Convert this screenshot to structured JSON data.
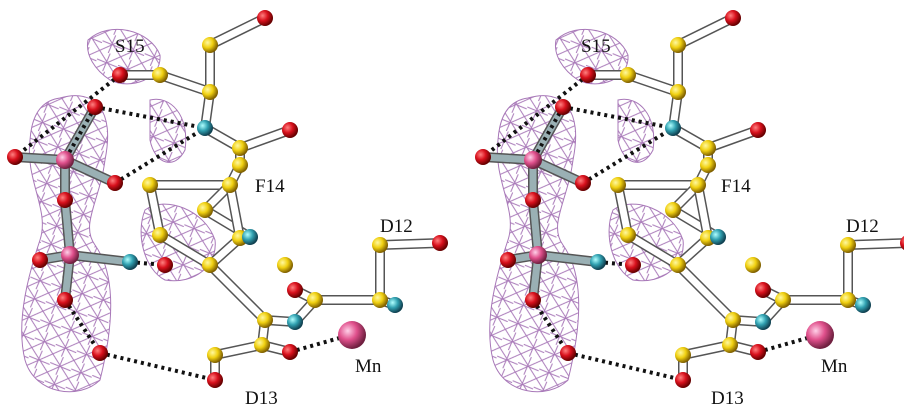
{
  "panels": [
    {
      "labels": [
        "S15",
        "F14",
        "D12",
        "Mn",
        "D13"
      ]
    },
    {
      "labels": [
        "S15",
        "F14",
        "D12",
        "Mn",
        "D13"
      ]
    }
  ]
}
